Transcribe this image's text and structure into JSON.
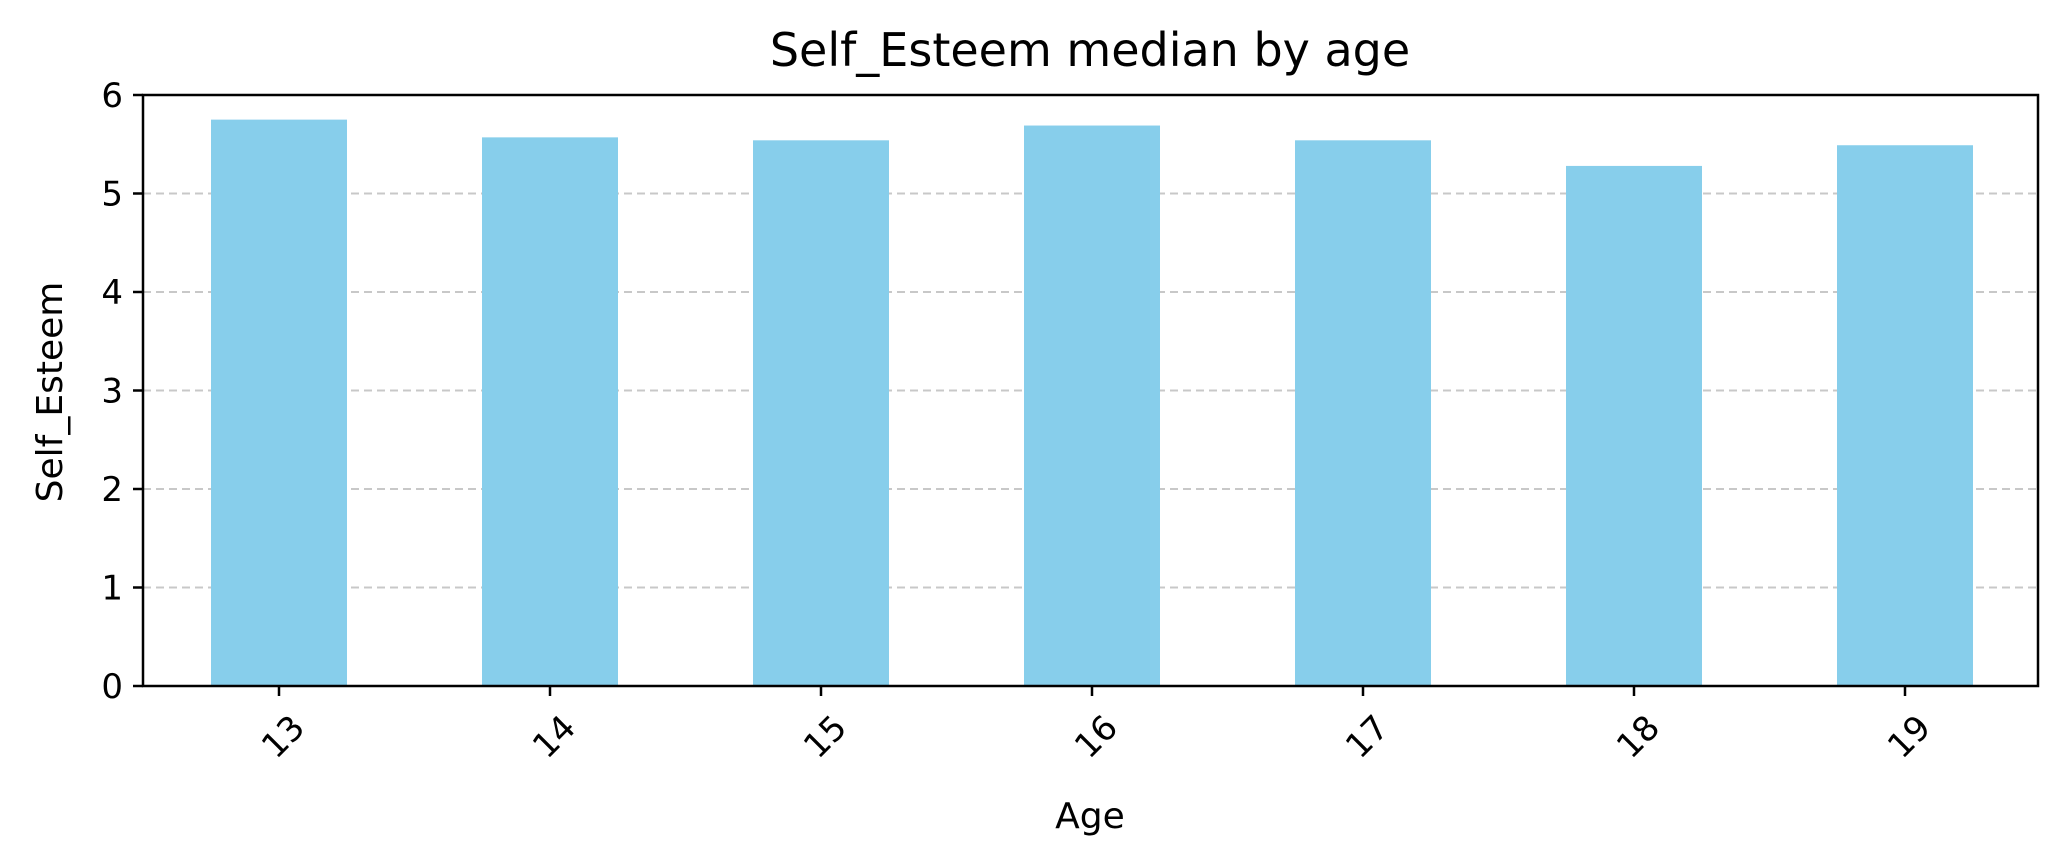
{
  "chart_data": {
    "type": "bar",
    "title": "Self_Esteem median by age",
    "xlabel": "Age",
    "ylabel": "Self_Esteem",
    "categories": [
      "13",
      "14",
      "15",
      "16",
      "17",
      "18",
      "19"
    ],
    "values": [
      5.75,
      5.57,
      5.54,
      5.69,
      5.54,
      5.28,
      5.49
    ],
    "ylim": [
      0,
      6
    ],
    "yticks": [
      "0",
      "1",
      "2",
      "3",
      "4",
      "5",
      "6"
    ],
    "x_tick_rotation_deg": 45,
    "grid": {
      "y": true,
      "x": false,
      "style": "dashed"
    },
    "legend": "none",
    "colors": {
      "bar": "#87CEEB",
      "grid": "#c8c8c8",
      "axis": "#000000"
    }
  }
}
